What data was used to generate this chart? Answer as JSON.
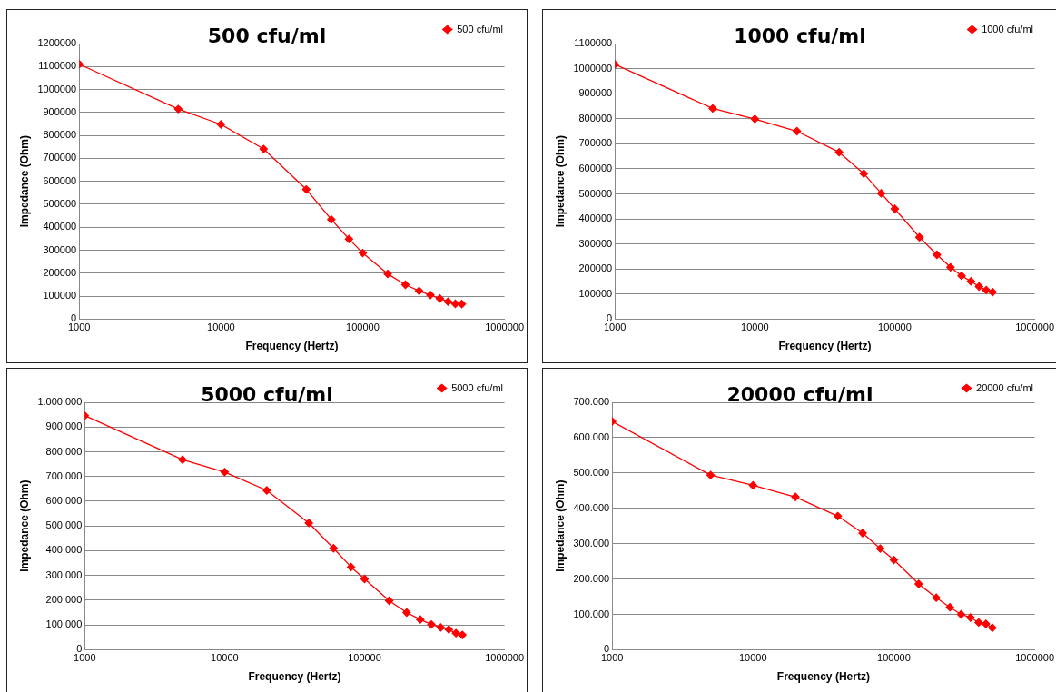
{
  "chart_data": [
    {
      "type": "line",
      "title": "500 cfu/ml",
      "xlabel": "Frequency (Hertz)",
      "ylabel": "Impedance (Ohm)",
      "log": "x",
      "grid": "y",
      "legend": "top right",
      "marker": "diamond",
      "line_style": "solid",
      "x": [
        1000,
        5000,
        10000,
        20000,
        40000,
        60000,
        80000,
        100000,
        150000,
        200000,
        250000,
        300000,
        350000,
        400000,
        450000,
        500000
      ],
      "series": [
        {
          "name": "500 cfu/ml",
          "color": "#ff0000",
          "values": [
            1110000,
            915000,
            848000,
            741000,
            565000,
            434000,
            349000,
            288000,
            197000,
            150000,
            123000,
            105000,
            90000,
            76000,
            67000,
            66000
          ]
        }
      ],
      "xlim": [
        1000,
        1000000
      ],
      "xticks": [
        1000,
        10000,
        100000,
        1000000
      ],
      "ylim": [
        0,
        1200000
      ],
      "yticks": [
        0,
        100000,
        200000,
        300000,
        400000,
        500000,
        600000,
        700000,
        800000,
        900000,
        1000000,
        1100000,
        1200000
      ]
    },
    {
      "type": "line",
      "title": "1000 cfu/ml",
      "xlabel": "Frequency (Hertz)",
      "ylabel": "Impedance (Ohm)",
      "log": "x",
      "grid": "y",
      "legend": "top right",
      "marker": "diamond",
      "line_style": "solid",
      "x": [
        1000,
        5000,
        10000,
        20000,
        40000,
        60000,
        80000,
        100000,
        150000,
        200000,
        250000,
        300000,
        350000,
        400000,
        450000,
        500000
      ],
      "series": [
        {
          "name": "1000 cfu/ml",
          "color": "#ff0000",
          "values": [
            1017000,
            841000,
            799000,
            750000,
            666000,
            581000,
            502000,
            440000,
            327000,
            257000,
            207000,
            173000,
            151000,
            130000,
            116000,
            108000
          ]
        }
      ],
      "xlim": [
        1000,
        1000000
      ],
      "xticks": [
        1000,
        10000,
        100000,
        1000000
      ],
      "ylim": [
        0,
        1100000
      ],
      "yticks": [
        0,
        100000,
        200000,
        300000,
        400000,
        500000,
        600000,
        700000,
        800000,
        900000,
        1000000,
        1100000
      ]
    },
    {
      "type": "line",
      "title": "5000 cfu/ml",
      "xlabel": "Frequency (Hertz)",
      "ylabel": "Impedance (Ohm)",
      "log": "x",
      "grid": "y",
      "legend": "top right",
      "marker": "diamond",
      "line_style": "solid",
      "x": [
        1000,
        5000,
        10000,
        20000,
        40000,
        60000,
        80000,
        100000,
        150000,
        200000,
        250000,
        300000,
        350000,
        400000,
        450000,
        500000
      ],
      "series": [
        {
          "name": "5000 cfu/ml",
          "color": "#ff0000",
          "values": [
            946000,
            768000,
            718000,
            644000,
            512000,
            410000,
            334000,
            286000,
            198000,
            150000,
            122000,
            102000,
            90000,
            82000,
            67000,
            60000
          ]
        }
      ],
      "xlim": [
        1000,
        1000000
      ],
      "xticks": [
        1000,
        10000,
        100000,
        1000000
      ],
      "ylim": [
        0,
        1000000
      ],
      "yticks": [
        0,
        {
          "value": 100000,
          "label": "100.000"
        },
        {
          "value": 200000,
          "label": "200.000"
        },
        {
          "value": 300000,
          "label": "300.000"
        },
        {
          "value": 400000,
          "label": "400.000"
        },
        {
          "value": 500000,
          "label": "500.000"
        },
        {
          "value": 600000,
          "label": "600.000"
        },
        {
          "value": 700000,
          "label": "700.000"
        },
        {
          "value": 800000,
          "label": "800.000"
        },
        {
          "value": 900000,
          "label": "900.000"
        },
        {
          "value": 1000000,
          "label": "1.000.000"
        }
      ]
    },
    {
      "type": "line",
      "title": "20000 cfu/ml",
      "xlabel": "Frequency (Hertz)",
      "ylabel": "Impedance (Ohm)",
      "log": "x",
      "grid": "y",
      "legend": "top right",
      "marker": "diamond",
      "line_style": "solid",
      "x": [
        1000,
        5000,
        10000,
        20000,
        40000,
        60000,
        80000,
        100000,
        150000,
        200000,
        250000,
        300000,
        350000,
        400000,
        450000,
        500000
      ],
      "series": [
        {
          "name": "20000 cfu/ml",
          "color": "#ff0000",
          "values": [
            646000,
            494000,
            465000,
            432000,
            378000,
            330000,
            286000,
            254000,
            186000,
            147000,
            120000,
            100000,
            91000,
            77000,
            73000,
            62000
          ]
        }
      ],
      "xlim": [
        1000,
        1000000
      ],
      "xticks": [
        1000,
        10000,
        100000,
        1000000
      ],
      "ylim": [
        0,
        700000
      ],
      "yticks": [
        0,
        {
          "value": 100000,
          "label": "100.000"
        },
        {
          "value": 200000,
          "label": "200.000"
        },
        {
          "value": 300000,
          "label": "300.000"
        },
        {
          "value": 400000,
          "label": "400.000"
        },
        {
          "value": 500000,
          "label": "500.000"
        },
        {
          "value": 600000,
          "label": "600.000"
        },
        {
          "value": 700000,
          "label": "700.000"
        }
      ]
    }
  ]
}
